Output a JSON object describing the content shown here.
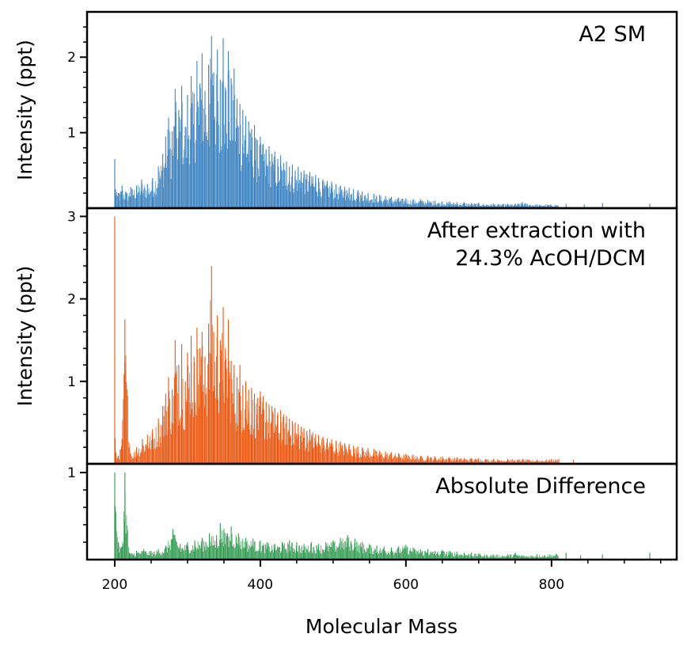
{
  "chart_data": {
    "type": "bar",
    "xlabel": "Molecular Mass",
    "xlim": [
      162,
      972
    ],
    "x_ticks": [
      200,
      400,
      600,
      800
    ],
    "panels": [
      {
        "title_lines": [
          "A2 SM"
        ],
        "ylabel": "Intensity (ppt)",
        "ylim": [
          0,
          2.6
        ],
        "y_ticks": [
          1,
          2
        ],
        "color": "#3b82c0",
        "series": {
          "x": [
            200,
            201,
            205,
            210,
            215,
            222,
            230,
            237,
            245,
            252,
            260,
            266,
            270,
            274,
            279,
            283,
            288,
            292,
            297,
            300,
            305,
            309,
            313,
            317,
            320,
            324,
            329,
            333,
            336,
            341,
            345,
            349,
            352,
            356,
            360,
            364,
            368,
            372,
            376,
            380,
            384,
            388,
            392,
            396,
            400,
            404,
            408,
            412,
            416,
            420,
            424,
            428,
            432,
            436,
            440,
            444,
            448,
            452,
            456,
            460,
            464,
            468,
            472,
            476,
            480,
            486,
            492,
            498,
            504,
            510,
            516,
            522,
            528,
            534,
            540,
            548,
            556,
            564,
            572,
            580,
            590,
            600,
            610,
            620,
            630,
            640,
            650,
            660,
            670,
            680,
            690,
            700,
            720,
            740,
            750,
            760,
            780,
            820,
            845,
            870,
            935
          ],
          "values": [
            0.65,
            0.25,
            0.2,
            0.3,
            0.22,
            0.28,
            0.3,
            0.38,
            0.32,
            0.4,
            0.55,
            0.72,
            0.95,
            1.2,
            1.02,
            1.58,
            1.3,
            1.62,
            1.08,
            1.5,
            1.75,
            1.52,
            1.95,
            1.65,
            2.05,
            1.55,
            1.9,
            2.28,
            1.8,
            2.1,
            1.7,
            2.25,
            1.6,
            2.08,
            1.72,
            1.85,
            1.45,
            1.38,
            1.3,
            1.22,
            1.15,
            1.05,
            1.1,
            0.9,
            0.95,
            0.85,
            0.78,
            0.82,
            0.72,
            0.75,
            0.65,
            0.7,
            0.6,
            0.62,
            0.55,
            0.58,
            0.5,
            0.55,
            0.48,
            0.5,
            0.45,
            0.48,
            0.42,
            0.44,
            0.4,
            0.38,
            0.36,
            0.35,
            0.32,
            0.3,
            0.28,
            0.27,
            0.25,
            0.24,
            0.22,
            0.2,
            0.19,
            0.18,
            0.16,
            0.15,
            0.14,
            0.13,
            0.12,
            0.12,
            0.11,
            0.1,
            0.09,
            0.09,
            0.08,
            0.08,
            0.07,
            0.07,
            0.06,
            0.06,
            0.06,
            0.08,
            0.05,
            0.06,
            0.05,
            0.07,
            0.06
          ]
        }
      },
      {
        "title_lines": [
          "After extraction with",
          "24.3% AcOH/DCM"
        ],
        "ylabel": "Intensity (ppt)",
        "ylim": [
          0,
          3.1
        ],
        "y_ticks": [
          1,
          2,
          3
        ],
        "color": "#e8560f",
        "series": {
          "x": [
            200,
            201,
            205,
            210,
            214,
            222,
            230,
            238,
            245,
            252,
            260,
            266,
            270,
            274,
            279,
            283,
            288,
            292,
            297,
            300,
            305,
            309,
            313,
            317,
            320,
            324,
            329,
            333,
            336,
            341,
            345,
            349,
            352,
            356,
            360,
            364,
            368,
            372,
            376,
            380,
            384,
            388,
            392,
            396,
            400,
            404,
            408,
            412,
            416,
            420,
            424,
            428,
            432,
            436,
            440,
            444,
            448,
            452,
            456,
            460,
            464,
            468,
            472,
            476,
            480,
            486,
            492,
            498,
            504,
            510,
            516,
            522,
            528,
            534,
            540,
            548,
            556,
            564,
            572,
            580,
            590,
            600,
            610,
            620,
            630,
            640,
            650,
            660,
            670,
            680,
            690,
            700,
            710,
            720,
            740,
            760,
            780,
            800,
            810,
            830
          ],
          "values": [
            3.0,
            0.15,
            0.1,
            0.3,
            1.75,
            0.12,
            0.2,
            0.3,
            0.35,
            0.42,
            0.55,
            0.7,
            0.85,
            1.05,
            0.9,
            1.5,
            1.2,
            1.45,
            1.0,
            1.35,
            1.55,
            1.3,
            1.65,
            1.4,
            1.6,
            1.3,
            1.7,
            2.4,
            1.6,
            1.8,
            1.5,
            1.9,
            1.4,
            1.75,
            1.25,
            1.2,
            1.05,
            1.2,
            0.95,
            1.0,
            0.9,
            0.92,
            0.85,
            0.8,
            0.88,
            0.82,
            0.75,
            0.72,
            0.7,
            0.68,
            0.62,
            0.65,
            0.6,
            0.58,
            0.55,
            0.52,
            0.5,
            0.48,
            0.45,
            0.43,
            0.4,
            0.42,
            0.38,
            0.36,
            0.35,
            0.33,
            0.31,
            0.3,
            0.28,
            0.27,
            0.25,
            0.24,
            0.22,
            0.21,
            0.2,
            0.19,
            0.18,
            0.16,
            0.15,
            0.14,
            0.13,
            0.12,
            0.11,
            0.1,
            0.1,
            0.09,
            0.09,
            0.08,
            0.08,
            0.07,
            0.07,
            0.07,
            0.06,
            0.06,
            0.06,
            0.06,
            0.05,
            0.06,
            0.06,
            0.05
          ]
        }
      },
      {
        "title_lines": [
          "Absolute Difference"
        ],
        "ylabel": "",
        "ylim": [
          0,
          1.1
        ],
        "y_ticks": [
          1
        ],
        "color": "#2f9a4e",
        "series": {
          "x": [
            200,
            205,
            210,
            214,
            220,
            230,
            240,
            250,
            260,
            270,
            280,
            290,
            300,
            310,
            320,
            330,
            340,
            345,
            350,
            355,
            360,
            370,
            380,
            390,
            400,
            410,
            420,
            430,
            440,
            450,
            460,
            470,
            480,
            490,
            500,
            510,
            520,
            530,
            540,
            550,
            560,
            570,
            580,
            590,
            600,
            610,
            620,
            630,
            640,
            650,
            660,
            670,
            680,
            690,
            700,
            720,
            740,
            750,
            760,
            780,
            820,
            840,
            870,
            935
          ],
          "values": [
            1.0,
            0.2,
            0.15,
            1.0,
            0.08,
            0.1,
            0.12,
            0.1,
            0.12,
            0.16,
            0.35,
            0.18,
            0.2,
            0.22,
            0.25,
            0.3,
            0.28,
            0.42,
            0.35,
            0.3,
            0.38,
            0.3,
            0.25,
            0.24,
            0.22,
            0.2,
            0.18,
            0.2,
            0.22,
            0.2,
            0.18,
            0.2,
            0.18,
            0.2,
            0.22,
            0.25,
            0.28,
            0.24,
            0.2,
            0.18,
            0.16,
            0.15,
            0.14,
            0.15,
            0.17,
            0.14,
            0.12,
            0.12,
            0.1,
            0.11,
            0.1,
            0.09,
            0.08,
            0.08,
            0.07,
            0.06,
            0.06,
            0.08,
            0.05,
            0.06,
            0.08,
            0.05,
            0.06,
            0.08
          ]
        }
      }
    ]
  }
}
